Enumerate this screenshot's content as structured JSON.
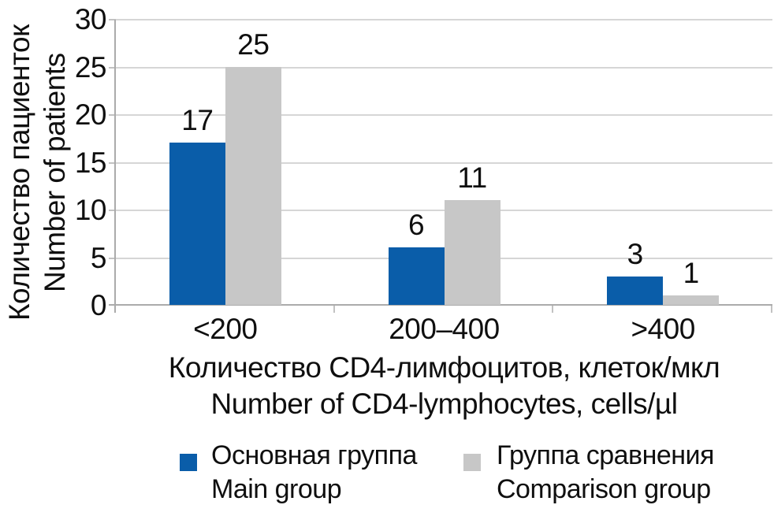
{
  "chart_data": {
    "type": "bar",
    "categories": [
      "<200",
      "200–400",
      ">400"
    ],
    "series": [
      {
        "name": "Основная группа",
        "name_en": "Main group",
        "color": "#0a5da9",
        "values": [
          17,
          6,
          3
        ]
      },
      {
        "name": "Группа сравнения",
        "name_en": "Comparison group",
        "color": "#c7c7c7",
        "values": [
          25,
          11,
          1
        ]
      }
    ],
    "ylabel": "Количество пациенток",
    "ylabel_en": "Number of patients",
    "xlabel": "Количество CD4-лимфоцитов, клеток/мкл",
    "xlabel_en": "Number of CD4-lymphocytes, cells/µl",
    "ylim": [
      0,
      30
    ],
    "ytick_step": 5,
    "grid": true,
    "legend_position": "bottom",
    "data_labels": true
  },
  "style": {
    "axis_color": "#ababab",
    "grid_color": "#d6d6d6",
    "tick_color": "#c2c2c2",
    "bar_blue": "#0a5da9",
    "bar_gray": "#c7c7c7",
    "text_color": "#0f0f0f",
    "background": "#ffffff"
  }
}
